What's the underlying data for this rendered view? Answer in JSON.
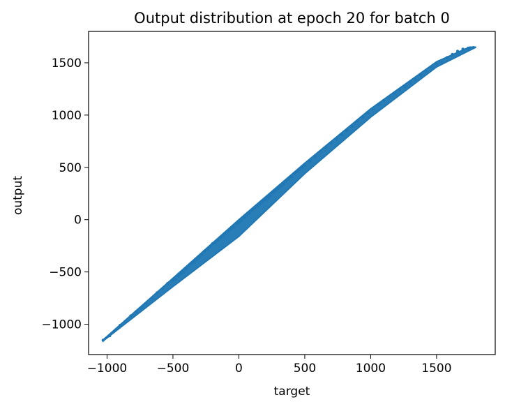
{
  "chart_data": {
    "type": "scatter",
    "title": "Output distribution at epoch 20 for batch 0",
    "xlabel": "target",
    "ylabel": "output",
    "xlim": [
      -1140,
      1945
    ],
    "ylim": [
      -1290,
      1800
    ],
    "xticks": [
      -1000,
      -500,
      0,
      500,
      1000,
      1500
    ],
    "yticks": [
      -1000,
      -500,
      0,
      500,
      1000,
      1500
    ],
    "xtick_labels": [
      "−1000",
      "−500",
      "0",
      "500",
      "1000",
      "1500"
    ],
    "ytick_labels": [
      "−1000",
      "−500",
      "0",
      "500",
      "1000",
      "1500"
    ],
    "grid": false,
    "legend": "none",
    "colors": {
      "series": "#1f77b4",
      "axes": "#000000",
      "background": "#ffffff"
    },
    "series": [
      {
        "upper_edge": [
          [
            -1030,
            -1150
          ],
          [
            -500,
            -560
          ],
          [
            0,
            0
          ],
          [
            500,
            540
          ],
          [
            1000,
            1060
          ],
          [
            1500,
            1510
          ],
          [
            1750,
            1650
          ]
        ],
        "lower_edge": [
          [
            -1030,
            -1160
          ],
          [
            -500,
            -640
          ],
          [
            0,
            -160
          ],
          [
            500,
            440
          ],
          [
            1000,
            980
          ],
          [
            1500,
            1460
          ],
          [
            1800,
            1650
          ]
        ],
        "points": [
          [
            -1030,
            -1153
          ],
          [
            -980,
            -1110
          ],
          [
            -940,
            -1060
          ],
          [
            -900,
            -1010
          ],
          [
            -860,
            -970
          ],
          [
            -820,
            -920
          ],
          [
            -780,
            -880
          ],
          [
            -740,
            -840
          ],
          [
            -700,
            -800
          ],
          [
            -660,
            -750
          ],
          [
            -620,
            -700
          ],
          [
            -580,
            -660
          ],
          [
            -540,
            -610
          ],
          [
            -500,
            -580
          ],
          [
            -480,
            -570
          ],
          [
            -460,
            -540
          ],
          [
            -440,
            -520
          ],
          [
            -420,
            -500
          ],
          [
            -400,
            -470
          ],
          [
            -380,
            -440
          ],
          [
            -360,
            -420
          ],
          [
            -340,
            -400
          ],
          [
            -320,
            -380
          ],
          [
            -300,
            -360
          ],
          [
            -280,
            -330
          ],
          [
            -260,
            -300
          ],
          [
            -240,
            -280
          ],
          [
            -220,
            -260
          ],
          [
            -200,
            -230
          ],
          [
            -180,
            -220
          ],
          [
            -160,
            -200
          ],
          [
            -140,
            -170
          ],
          [
            -120,
            -150
          ],
          [
            -100,
            -130
          ],
          [
            -80,
            -110
          ],
          [
            -60,
            -90
          ],
          [
            -40,
            -70
          ],
          [
            -20,
            -40
          ],
          [
            0,
            -30
          ],
          [
            20,
            -10
          ],
          [
            40,
            20
          ],
          [
            60,
            40
          ],
          [
            80,
            60
          ],
          [
            100,
            90
          ],
          [
            120,
            110
          ],
          [
            140,
            130
          ],
          [
            160,
            150
          ],
          [
            180,
            170
          ],
          [
            200,
            190
          ],
          [
            220,
            210
          ],
          [
            240,
            230
          ],
          [
            260,
            260
          ],
          [
            280,
            280
          ],
          [
            300,
            300
          ],
          [
            320,
            320
          ],
          [
            340,
            340
          ],
          [
            360,
            370
          ],
          [
            380,
            390
          ],
          [
            400,
            410
          ],
          [
            420,
            440
          ],
          [
            440,
            460
          ],
          [
            460,
            480
          ],
          [
            480,
            500
          ],
          [
            500,
            520
          ],
          [
            540,
            560
          ],
          [
            580,
            600
          ],
          [
            620,
            650
          ],
          [
            660,
            690
          ],
          [
            700,
            730
          ],
          [
            740,
            770
          ],
          [
            780,
            810
          ],
          [
            820,
            850
          ],
          [
            860,
            890
          ],
          [
            900,
            940
          ],
          [
            940,
            980
          ],
          [
            980,
            1020
          ],
          [
            1020,
            1060
          ],
          [
            1060,
            1100
          ],
          [
            1100,
            1140
          ],
          [
            1140,
            1170
          ],
          [
            1180,
            1210
          ],
          [
            1220,
            1240
          ],
          [
            1260,
            1270
          ],
          [
            1300,
            1310
          ],
          [
            1340,
            1340
          ],
          [
            1380,
            1380
          ],
          [
            1420,
            1420
          ],
          [
            1460,
            1460
          ],
          [
            1500,
            1490
          ],
          [
            1540,
            1510
          ],
          [
            1580,
            1550
          ],
          [
            1620,
            1580
          ],
          [
            1660,
            1610
          ],
          [
            1700,
            1630
          ],
          [
            1740,
            1640
          ],
          [
            1780,
            1645
          ]
        ]
      }
    ]
  }
}
